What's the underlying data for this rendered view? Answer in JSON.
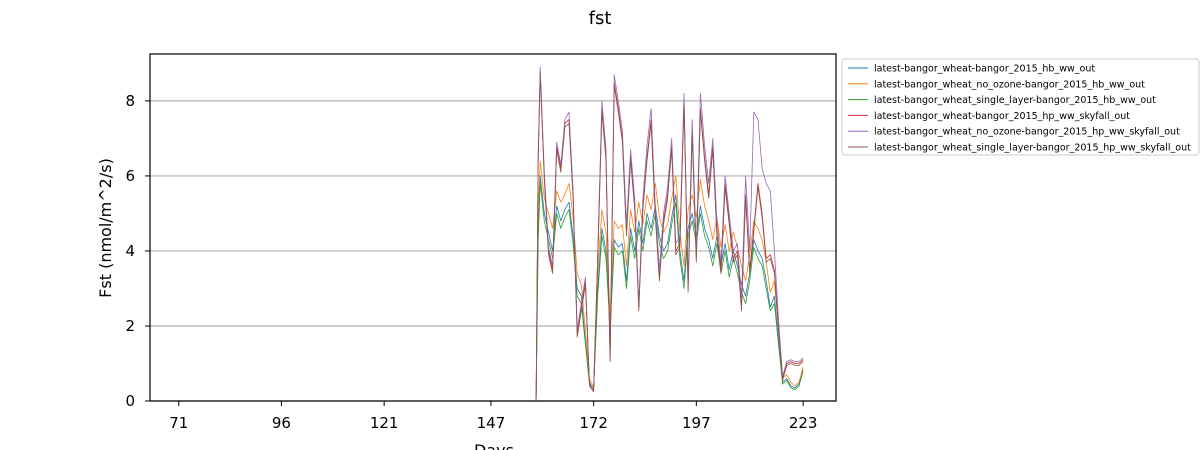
{
  "chart_data": {
    "type": "line",
    "title": "fst",
    "xlabel": "Days",
    "ylabel": "Fst (nmol/m^2/s)",
    "xlim": [
      64,
      231
    ],
    "ylim": [
      0,
      9.25
    ],
    "xticks": [
      71,
      96,
      121,
      147,
      172,
      197,
      223
    ],
    "yticks": [
      0,
      2,
      4,
      6,
      8
    ],
    "grid": "y",
    "legend_position": "outside-top-right",
    "series": [
      {
        "name": "latest-bangor_wheat-bangor_2015_hb_ww_out",
        "color": "#1f77b4",
        "x": [
          71,
          158,
          158.5,
          159,
          160,
          161,
          162,
          163,
          164,
          165,
          166,
          167,
          168,
          169,
          170,
          171,
          172,
          173,
          174,
          175,
          176,
          177,
          178,
          179,
          180,
          181,
          182,
          183,
          184,
          185,
          186,
          187,
          188,
          189,
          190,
          191,
          192,
          193,
          194,
          195,
          196,
          197,
          198,
          199,
          200,
          201,
          202,
          203,
          204,
          205,
          206,
          207,
          208,
          209,
          210,
          211,
          212,
          213,
          214,
          215,
          216,
          217,
          218,
          219,
          220,
          221,
          222,
          223
        ],
        "y": [
          0,
          0,
          4.5,
          6.0,
          5.0,
          4.5,
          4.0,
          5.2,
          4.8,
          5.1,
          5.3,
          4.4,
          3.0,
          2.8,
          1.6,
          0.5,
          0.3,
          3.0,
          4.6,
          4.0,
          2.0,
          4.3,
          4.1,
          4.2,
          3.2,
          4.6,
          4.0,
          4.8,
          4.2,
          5.0,
          4.6,
          5.2,
          4.4,
          4.0,
          4.2,
          4.9,
          5.5,
          4.0,
          3.2,
          4.6,
          5.0,
          4.4,
          5.2,
          4.6,
          4.3,
          3.8,
          4.4,
          3.6,
          4.2,
          3.5,
          4.0,
          3.6,
          3.1,
          2.8,
          3.4,
          4.3,
          4.0,
          3.8,
          3.2,
          2.5,
          2.8,
          1.6,
          0.5,
          0.6,
          0.4,
          0.35,
          0.45,
          0.85
        ]
      },
      {
        "name": "latest-bangor_wheat_no_ozone-bangor_2015_hb_ww_out",
        "color": "#ff7f0e",
        "x": [
          71,
          158,
          158.5,
          159,
          160,
          161,
          162,
          163,
          164,
          165,
          166,
          167,
          168,
          169,
          170,
          171,
          172,
          173,
          174,
          175,
          176,
          177,
          178,
          179,
          180,
          181,
          182,
          183,
          184,
          185,
          186,
          187,
          188,
          189,
          190,
          191,
          192,
          193,
          194,
          195,
          196,
          197,
          198,
          199,
          200,
          201,
          202,
          203,
          204,
          205,
          206,
          207,
          208,
          209,
          210,
          211,
          212,
          213,
          214,
          215,
          216,
          217,
          218,
          219,
          220,
          221,
          222,
          223
        ],
        "y": [
          0,
          0,
          5.0,
          6.4,
          5.4,
          5.0,
          4.6,
          5.6,
          5.3,
          5.5,
          5.8,
          4.9,
          3.4,
          3.1,
          1.9,
          0.6,
          0.35,
          3.4,
          5.1,
          4.5,
          2.3,
          4.8,
          4.6,
          4.7,
          3.6,
          5.1,
          4.5,
          5.3,
          4.7,
          5.5,
          5.1,
          5.8,
          4.9,
          4.5,
          4.7,
          5.4,
          6.0,
          4.5,
          3.6,
          5.1,
          5.5,
          4.9,
          5.9,
          5.2,
          4.8,
          4.3,
          4.9,
          4.1,
          4.7,
          4.0,
          4.5,
          4.1,
          3.6,
          3.2,
          3.9,
          4.8,
          4.6,
          4.3,
          3.7,
          2.9,
          3.2,
          1.9,
          0.6,
          0.7,
          0.5,
          0.4,
          0.5,
          0.9
        ]
      },
      {
        "name": "latest-bangor_wheat_single_layer-bangor_2015_hb_ww_out",
        "color": "#2ca02c",
        "x": [
          71,
          158,
          158.5,
          159,
          160,
          161,
          162,
          163,
          164,
          165,
          166,
          167,
          168,
          169,
          170,
          171,
          172,
          173,
          174,
          175,
          176,
          177,
          178,
          179,
          180,
          181,
          182,
          183,
          184,
          185,
          186,
          187,
          188,
          189,
          190,
          191,
          192,
          193,
          194,
          195,
          196,
          197,
          198,
          199,
          200,
          201,
          202,
          203,
          204,
          205,
          206,
          207,
          208,
          209,
          210,
          211,
          212,
          213,
          214,
          215,
          216,
          217,
          218,
          219,
          220,
          221,
          222,
          223
        ],
        "y": [
          0,
          0,
          4.3,
          5.8,
          4.8,
          4.3,
          3.8,
          5.0,
          4.6,
          4.9,
          5.1,
          4.2,
          2.8,
          2.6,
          1.5,
          0.45,
          0.3,
          2.8,
          4.4,
          3.8,
          1.9,
          4.1,
          3.9,
          4.0,
          3.0,
          4.4,
          3.8,
          4.6,
          4.0,
          4.8,
          4.4,
          5.0,
          4.2,
          3.8,
          4.0,
          4.7,
          5.3,
          3.8,
          3.0,
          4.4,
          4.8,
          4.2,
          5.0,
          4.4,
          4.1,
          3.6,
          4.2,
          3.4,
          4.0,
          3.3,
          3.8,
          3.4,
          2.9,
          2.6,
          3.2,
          4.1,
          3.8,
          3.6,
          3.0,
          2.4,
          2.6,
          1.5,
          0.45,
          0.55,
          0.35,
          0.3,
          0.4,
          0.8
        ]
      },
      {
        "name": "latest-bangor_wheat-bangor_2015_hp_ww_skyfall_out",
        "color": "#d62728",
        "x": [
          71,
          158,
          158.5,
          159,
          160,
          161,
          162,
          163,
          164,
          165,
          166,
          167,
          168,
          169,
          170,
          171,
          172,
          173,
          174,
          175,
          176,
          177,
          178,
          179,
          180,
          181,
          182,
          183,
          184,
          185,
          186,
          187,
          188,
          189,
          190,
          191,
          192,
          193,
          194,
          195,
          196,
          197,
          198,
          199,
          200,
          201,
          202,
          203,
          204,
          205,
          206,
          207,
          208,
          209,
          210,
          211,
          212,
          213,
          214,
          215,
          216,
          217,
          218,
          219,
          220,
          221,
          222,
          223
        ],
        "y": [
          0,
          0,
          6.5,
          8.8,
          6.0,
          4.0,
          3.5,
          6.8,
          6.2,
          7.4,
          7.5,
          5.5,
          1.8,
          2.5,
          3.2,
          0.4,
          0.25,
          3.8,
          7.8,
          6.5,
          1.1,
          8.5,
          7.8,
          7.0,
          4.5,
          6.5,
          5.2,
          2.5,
          5.2,
          6.5,
          7.5,
          5.0,
          3.3,
          4.8,
          5.5,
          6.8,
          4.0,
          4.2,
          8.0,
          3.0,
          7.2,
          3.8,
          7.8,
          6.5,
          5.5,
          6.8,
          4.5,
          3.5,
          5.8,
          4.8,
          3.8,
          4.0,
          2.5,
          5.5,
          3.5,
          4.6,
          5.8,
          5.0,
          3.8,
          3.9,
          3.5,
          2.0,
          0.6,
          1.0,
          1.05,
          1.0,
          1.0,
          1.1
        ]
      },
      {
        "name": "latest-bangor_wheat_no_ozone-bangor_2015_hp_ww_skyfall_out",
        "color": "#9467bd",
        "x": [
          71,
          158,
          158.5,
          159,
          160,
          161,
          162,
          163,
          164,
          165,
          166,
          167,
          168,
          169,
          170,
          171,
          172,
          173,
          174,
          175,
          176,
          177,
          178,
          179,
          180,
          181,
          182,
          183,
          184,
          185,
          186,
          187,
          188,
          189,
          190,
          191,
          192,
          193,
          194,
          195,
          196,
          197,
          198,
          199,
          200,
          201,
          202,
          203,
          204,
          205,
          206,
          207,
          208,
          209,
          210,
          211,
          212,
          213,
          214,
          215,
          216,
          217,
          218,
          219,
          220,
          221,
          222,
          223
        ],
        "y": [
          0,
          0,
          6.6,
          8.9,
          6.1,
          4.1,
          3.6,
          6.9,
          6.3,
          7.5,
          7.7,
          5.6,
          1.9,
          2.6,
          3.3,
          0.45,
          0.3,
          3.9,
          8.0,
          6.7,
          1.2,
          8.7,
          8.0,
          7.2,
          4.7,
          6.7,
          5.4,
          2.6,
          5.4,
          6.8,
          7.8,
          5.2,
          3.5,
          5.0,
          5.7,
          7.0,
          4.2,
          4.4,
          8.2,
          3.2,
          7.5,
          4.0,
          8.2,
          6.8,
          5.8,
          7.0,
          4.8,
          3.7,
          6.0,
          5.0,
          4.0,
          4.2,
          2.7,
          6.0,
          4.0,
          7.7,
          7.5,
          6.2,
          5.8,
          5.6,
          4.0,
          2.2,
          0.65,
          1.05,
          1.1,
          1.05,
          1.05,
          1.15
        ]
      },
      {
        "name": "latest-bangor_wheat_single_layer-bangor_2015_hp_ww_skyfall_out",
        "color": "#8c564b",
        "x": [
          71,
          158,
          158.5,
          159,
          160,
          161,
          162,
          163,
          164,
          165,
          166,
          167,
          168,
          169,
          170,
          171,
          172,
          173,
          174,
          175,
          176,
          177,
          178,
          179,
          180,
          181,
          182,
          183,
          184,
          185,
          186,
          187,
          188,
          189,
          190,
          191,
          192,
          193,
          194,
          195,
          196,
          197,
          198,
          199,
          200,
          201,
          202,
          203,
          204,
          205,
          206,
          207,
          208,
          209,
          210,
          211,
          212,
          213,
          214,
          215,
          216,
          217,
          218,
          219,
          220,
          221,
          222,
          223
        ],
        "y": [
          0,
          0,
          6.4,
          8.7,
          5.9,
          3.9,
          3.4,
          6.7,
          6.1,
          7.3,
          7.4,
          5.4,
          1.7,
          2.4,
          3.1,
          0.4,
          0.25,
          3.7,
          7.7,
          6.4,
          1.05,
          8.4,
          7.7,
          6.9,
          4.4,
          6.4,
          5.1,
          2.4,
          5.1,
          6.4,
          7.4,
          4.9,
          3.2,
          4.7,
          5.4,
          6.7,
          3.9,
          4.1,
          7.9,
          2.9,
          7.1,
          3.7,
          7.7,
          6.4,
          5.4,
          6.7,
          4.4,
          3.4,
          5.7,
          4.7,
          3.7,
          3.9,
          2.4,
          5.4,
          3.4,
          4.5,
          5.7,
          4.9,
          3.7,
          3.8,
          3.4,
          1.9,
          0.55,
          0.95,
          1.0,
          0.95,
          0.95,
          1.05
        ]
      }
    ]
  }
}
